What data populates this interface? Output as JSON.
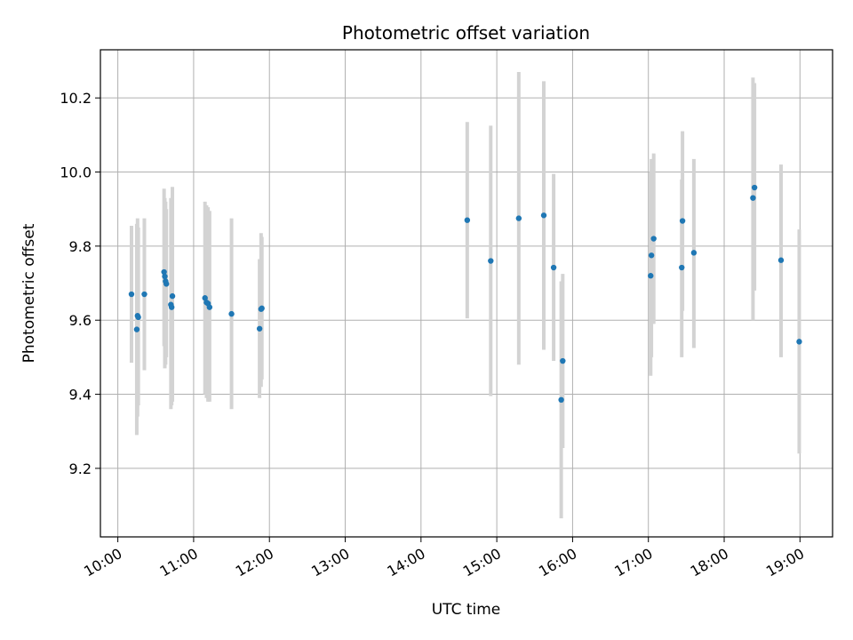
{
  "chart_data": {
    "type": "scatter",
    "title": "Photometric offset variation",
    "xlabel": "UTC time",
    "ylabel": "Photometric offset",
    "grid": true,
    "legend": "none",
    "x_unit": "hours",
    "xlim": [
      9.77,
      19.43
    ],
    "ylim": [
      9.015,
      10.33
    ],
    "xticks": [
      10,
      11,
      12,
      13,
      14,
      15,
      16,
      17,
      18,
      19
    ],
    "xtick_labels": [
      "10:00",
      "11:00",
      "12:00",
      "13:00",
      "14:00",
      "15:00",
      "16:00",
      "17:00",
      "18:00",
      "19:00"
    ],
    "yticks": [
      9.2,
      9.4,
      9.6,
      9.8,
      10.0,
      10.2
    ],
    "ytick_labels": [
      "9.2",
      "9.4",
      "9.6",
      "9.8",
      "10.0",
      "10.2"
    ],
    "colors": {
      "point": "#1f77b4",
      "errorbar": "#d3d3d3",
      "grid": "#b0b0b0"
    },
    "points": [
      {
        "x": 10.18,
        "y": 9.67,
        "ylo": 9.485,
        "yhi": 9.855
      },
      {
        "x": 10.25,
        "y": 9.575,
        "ylo": 9.29,
        "yhi": 9.86
      },
      {
        "x": 10.26,
        "y": 9.612,
        "ylo": 9.34,
        "yhi": 9.875
      },
      {
        "x": 10.27,
        "y": 9.608,
        "ylo": 9.37,
        "yhi": 9.85
      },
      {
        "x": 10.35,
        "y": 9.67,
        "ylo": 9.465,
        "yhi": 9.875
      },
      {
        "x": 10.61,
        "y": 9.73,
        "ylo": 9.53,
        "yhi": 9.955
      },
      {
        "x": 10.62,
        "y": 9.718,
        "ylo": 9.47,
        "yhi": 9.93
      },
      {
        "x": 10.63,
        "y": 9.705,
        "ylo": 9.48,
        "yhi": 9.92
      },
      {
        "x": 10.64,
        "y": 9.698,
        "ylo": 9.5,
        "yhi": 9.9
      },
      {
        "x": 10.7,
        "y": 9.642,
        "ylo": 9.36,
        "yhi": 9.93
      },
      {
        "x": 10.71,
        "y": 9.635,
        "ylo": 9.37,
        "yhi": 9.91
      },
      {
        "x": 10.72,
        "y": 9.665,
        "ylo": 9.38,
        "yhi": 9.96
      },
      {
        "x": 11.15,
        "y": 9.66,
        "ylo": 9.4,
        "yhi": 9.92
      },
      {
        "x": 11.17,
        "y": 9.648,
        "ylo": 9.39,
        "yhi": 9.91
      },
      {
        "x": 11.19,
        "y": 9.645,
        "ylo": 9.38,
        "yhi": 9.905
      },
      {
        "x": 11.21,
        "y": 9.635,
        "ylo": 9.38,
        "yhi": 9.895
      },
      {
        "x": 11.5,
        "y": 9.617,
        "ylo": 9.36,
        "yhi": 9.875
      },
      {
        "x": 11.87,
        "y": 9.577,
        "ylo": 9.39,
        "yhi": 9.765
      },
      {
        "x": 11.89,
        "y": 9.63,
        "ylo": 9.42,
        "yhi": 9.835
      },
      {
        "x": 11.9,
        "y": 9.632,
        "ylo": 9.44,
        "yhi": 9.825
      },
      {
        "x": 14.61,
        "y": 9.87,
        "ylo": 9.605,
        "yhi": 10.135
      },
      {
        "x": 14.92,
        "y": 9.76,
        "ylo": 9.395,
        "yhi": 10.125
      },
      {
        "x": 15.29,
        "y": 9.875,
        "ylo": 9.48,
        "yhi": 10.27
      },
      {
        "x": 15.62,
        "y": 9.883,
        "ylo": 9.52,
        "yhi": 10.245
      },
      {
        "x": 15.75,
        "y": 9.742,
        "ylo": 9.49,
        "yhi": 9.995
      },
      {
        "x": 15.85,
        "y": 9.385,
        "ylo": 9.065,
        "yhi": 9.705
      },
      {
        "x": 15.87,
        "y": 9.49,
        "ylo": 9.255,
        "yhi": 9.725
      },
      {
        "x": 17.03,
        "y": 9.72,
        "ylo": 9.45,
        "yhi": 10.0
      },
      {
        "x": 17.04,
        "y": 9.775,
        "ylo": 9.5,
        "yhi": 10.035
      },
      {
        "x": 17.07,
        "y": 9.82,
        "ylo": 9.59,
        "yhi": 10.05
      },
      {
        "x": 17.44,
        "y": 9.742,
        "ylo": 9.5,
        "yhi": 9.98
      },
      {
        "x": 17.45,
        "y": 9.868,
        "ylo": 9.625,
        "yhi": 10.11
      },
      {
        "x": 17.6,
        "y": 9.782,
        "ylo": 9.525,
        "yhi": 10.035
      },
      {
        "x": 18.38,
        "y": 9.93,
        "ylo": 9.6,
        "yhi": 10.255
      },
      {
        "x": 18.4,
        "y": 9.958,
        "ylo": 9.68,
        "yhi": 10.24
      },
      {
        "x": 18.75,
        "y": 9.762,
        "ylo": 9.5,
        "yhi": 10.02
      },
      {
        "x": 18.99,
        "y": 9.542,
        "ylo": 9.24,
        "yhi": 9.845
      }
    ]
  }
}
